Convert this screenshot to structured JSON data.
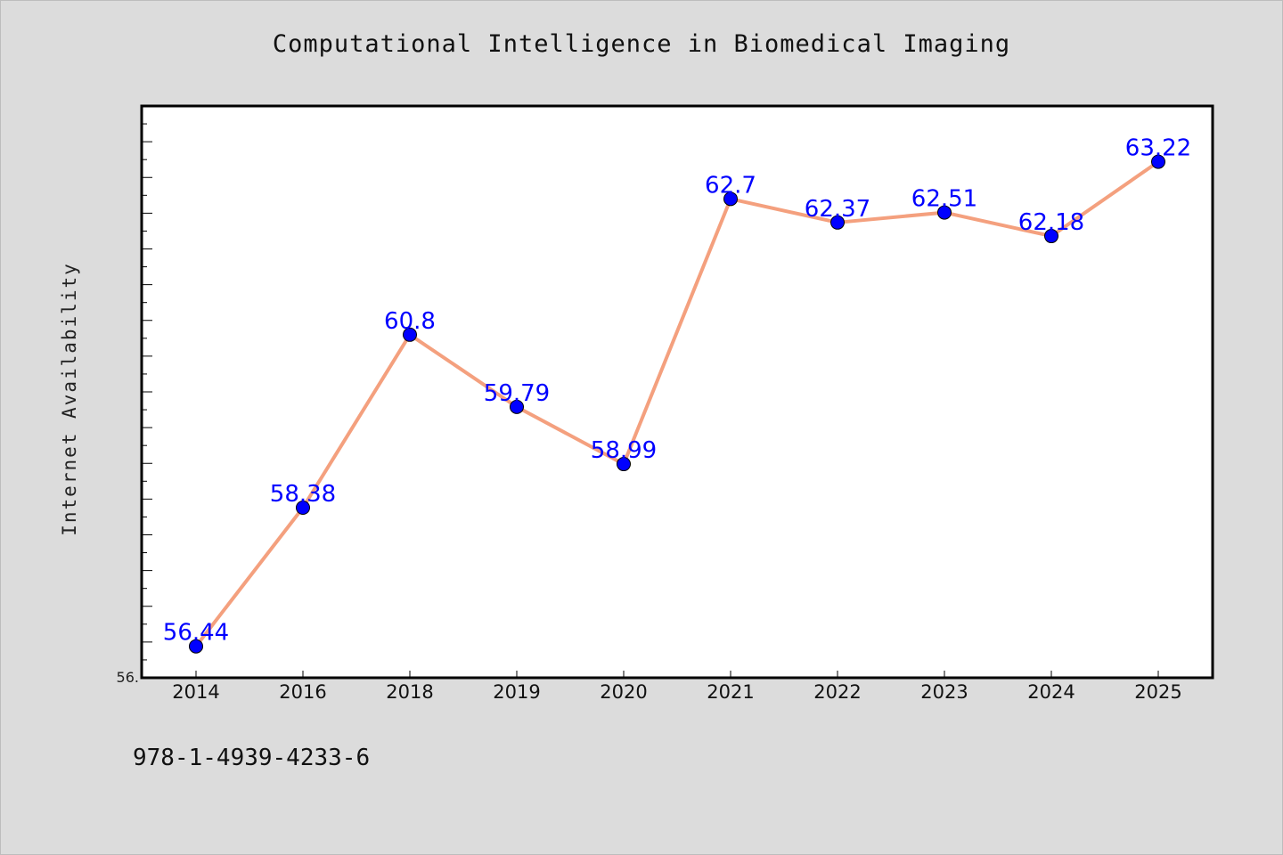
{
  "page": {
    "isbn": "978-1-4939-4233-6"
  },
  "chart_data": {
    "type": "line",
    "title": "Computational Intelligence in Biomedical Imaging",
    "xlabel": "",
    "ylabel": "Internet Availability",
    "categories": [
      "2014",
      "2016",
      "2018",
      "2019",
      "2020",
      "2021",
      "2022",
      "2023",
      "2024",
      "2025"
    ],
    "series": [
      {
        "values": [
          56.44,
          58.38,
          60.8,
          59.79,
          58.99,
          62.7,
          62.37,
          62.51,
          62.18,
          63.22
        ],
        "labels": [
          "56.44",
          "58.38",
          "60.8",
          "59.79",
          "58.99",
          "62.7",
          "62.37",
          "62.51",
          "62.18",
          "63.22"
        ],
        "line_color": "#f4a07e",
        "marker_color": "#0000ff"
      }
    ],
    "ylim": [
      56.0,
      64.0
    ],
    "y_tick_labels": [
      "56."
    ],
    "grid": false,
    "legend": "none",
    "colors": {
      "background": "#dcdcdc",
      "plot_background": "#ffffff",
      "data_label": "#0000ff"
    }
  }
}
